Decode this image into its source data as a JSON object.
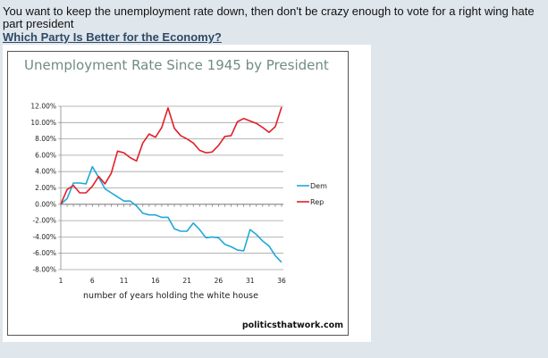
{
  "post": {
    "text": "You want to keep the unemployment rate down, then don't be crazy enough to vote for a right wing hate part president",
    "link": "Which Party Is Better for the Economy?"
  },
  "chart_data": {
    "type": "line",
    "title": "Unemployment Rate Since 1945 by President",
    "xlabel": "number of years holding the white house",
    "ylabel": "",
    "x": [
      1,
      2,
      3,
      4,
      5,
      6,
      7,
      8,
      9,
      10,
      11,
      12,
      13,
      14,
      15,
      16,
      17,
      18,
      19,
      20,
      21,
      22,
      23,
      24,
      25,
      26,
      27,
      28,
      29,
      30,
      31,
      32,
      33,
      34,
      35,
      36
    ],
    "x_tick_labels": [
      "1",
      "6",
      "11",
      "16",
      "21",
      "26",
      "31",
      "36"
    ],
    "y_tick_labels": [
      "12.00%",
      "10.00%",
      "8.00%",
      "6.00%",
      "4.00%",
      "2.00%",
      "0.00%",
      "-2.00%",
      "-4.00%",
      "-6.00%",
      "-8.00%"
    ],
    "ylim": [
      -8,
      12
    ],
    "xlim": [
      1,
      36
    ],
    "grid": true,
    "legend_position": "right",
    "series": [
      {
        "name": "Dem",
        "color": "#1fa8d8",
        "values": [
          0,
          0.7,
          2.6,
          2.6,
          2.5,
          4.6,
          3.3,
          1.9,
          1.4,
          0.9,
          0.4,
          0.4,
          -0.2,
          -1.1,
          -1.3,
          -1.3,
          -1.6,
          -1.6,
          -3.0,
          -3.3,
          -3.3,
          -2.3,
          -3.1,
          -4.1,
          -4.0,
          -4.1,
          -4.9,
          -5.2,
          -5.6,
          -5.7,
          -3.1,
          -3.7,
          -4.5,
          -5.1,
          -6.3,
          -7.1
        ]
      },
      {
        "name": "Rep",
        "color": "#e0202a",
        "values": [
          0,
          1.8,
          2.3,
          1.4,
          1.4,
          2.2,
          3.4,
          2.5,
          3.8,
          6.5,
          6.3,
          5.7,
          5.3,
          7.5,
          8.6,
          8.2,
          9.4,
          11.8,
          9.3,
          8.4,
          8.0,
          7.5,
          6.6,
          6.3,
          6.4,
          7.2,
          8.3,
          8.4,
          10.1,
          10.5,
          10.2,
          9.9,
          9.4,
          8.8,
          9.5,
          11.9
        ]
      }
    ],
    "watermark": "politicsthatwork.com"
  }
}
